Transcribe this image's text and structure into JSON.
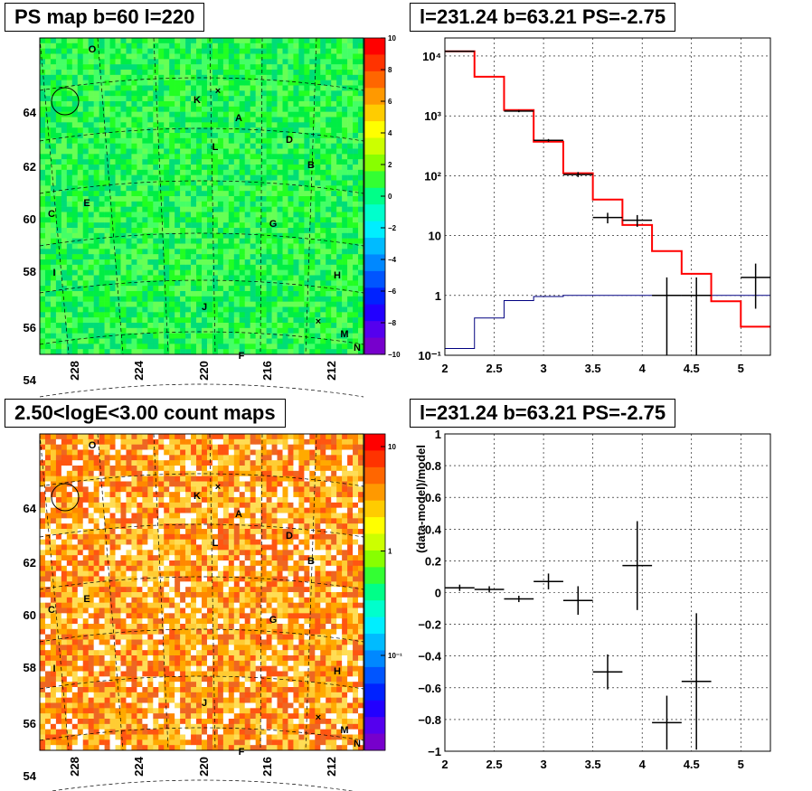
{
  "panels": {
    "ps_map_title": "PS map b=60 l=220",
    "spectrum_title": "l=231.24 b=63.21 PS=-2.75",
    "count_map_title": "2.50<logE<3.00 count maps",
    "residual_title": "l=231.24 b=63.21 PS=-2.75"
  },
  "sky_maps": {
    "l_ticks": [
      "228",
      "224",
      "220",
      "216",
      "212"
    ],
    "b_ticks": [
      "64",
      "62",
      "60",
      "58",
      "56",
      "54"
    ],
    "source_labels": [
      "O",
      "K",
      "A",
      "L",
      "D",
      "B",
      "C",
      "E",
      "G",
      "I",
      "H",
      "J",
      "M",
      "N",
      "F"
    ],
    "ps_colorbar_ticks": [
      "10",
      "8",
      "6",
      "4",
      "2",
      "0",
      "−2",
      "−4",
      "−6",
      "−8",
      "−10"
    ],
    "count_colorbar_ticks": [
      "10",
      "1",
      "10⁻¹"
    ],
    "ps_map_colors": [
      "#00ee44",
      "#22ff22",
      "#44ff66",
      "#00dd77",
      "#66ff55"
    ],
    "count_map_colors": [
      "#ff8800",
      "#ffaa00",
      "#ffcc33",
      "#ee6622",
      "#ffdd55",
      "#ff5511",
      "#ffffff"
    ]
  },
  "chart_data": [
    {
      "type": "line",
      "panel": "spectrum",
      "x_ticks": [
        "2",
        "2.5",
        "3",
        "3.5",
        "4",
        "4.5",
        "5"
      ],
      "y_ticks": [
        "10⁻¹",
        "1",
        "10",
        "10²",
        "10³",
        "10⁴"
      ],
      "xlim": [
        2.0,
        5.3
      ],
      "ylim": [
        0.1,
        20000
      ],
      "log_y": true,
      "grid": true,
      "model_total_color": "#ff0000",
      "model_background_color": "#000080",
      "model_total_step": {
        "edges": [
          2.0,
          2.3,
          2.6,
          2.9,
          3.2,
          3.5,
          3.8,
          4.1,
          4.4,
          4.7,
          5.0,
          5.3
        ],
        "values": [
          12000,
          4500,
          1250,
          370,
          110,
          40,
          15,
          5.5,
          2.3,
          0.8,
          0.3
        ]
      },
      "model_background_step": {
        "edges": [
          2.0,
          2.3,
          2.6,
          2.9,
          3.2,
          3.5,
          3.8,
          4.1,
          4.4,
          4.7,
          5.0,
          5.3
        ],
        "values": [
          0.13,
          0.42,
          0.82,
          0.96,
          1.0,
          1.0,
          1.0,
          1.0,
          1.0,
          1.0,
          1.0
        ]
      },
      "data_points": [
        {
          "x": 2.15,
          "xerr": 0.15,
          "y": 12000,
          "ylo": 11800,
          "yhi": 12200
        },
        {
          "x": 2.75,
          "xerr": 0.15,
          "y": 1200,
          "ylo": 1150,
          "yhi": 1250
        },
        {
          "x": 3.05,
          "xerr": 0.15,
          "y": 390,
          "ylo": 370,
          "yhi": 410
        },
        {
          "x": 3.35,
          "xerr": 0.15,
          "y": 105,
          "ylo": 95,
          "yhi": 115
        },
        {
          "x": 3.65,
          "xerr": 0.15,
          "y": 20,
          "ylo": 16,
          "yhi": 24
        },
        {
          "x": 3.95,
          "xerr": 0.15,
          "y": 18,
          "ylo": 14,
          "yhi": 22
        },
        {
          "x": 4.25,
          "xerr": 0.15,
          "y": 1.0,
          "ylo": 0.1,
          "yhi": 2.0
        },
        {
          "x": 4.55,
          "xerr": 0.15,
          "y": 1.0,
          "ylo": 0.1,
          "yhi": 2.0
        },
        {
          "x": 5.15,
          "xerr": 0.15,
          "y": 2.0,
          "ylo": 0.6,
          "yhi": 3.4
        }
      ]
    },
    {
      "type": "scatter",
      "panel": "residual",
      "ylabel": "(data-model)/model",
      "x_ticks": [
        "2",
        "2.5",
        "3",
        "3.5",
        "4",
        "4.5",
        "5"
      ],
      "y_ticks": [
        "1",
        "0.8",
        "0.6",
        "0.4",
        "0.2",
        "0",
        "−0.2",
        "−0.4",
        "−0.6",
        "−0.8",
        "−1"
      ],
      "xlim": [
        2.0,
        5.3
      ],
      "ylim": [
        -1,
        1
      ],
      "grid": true,
      "data_points": [
        {
          "x": 2.15,
          "xerr": 0.15,
          "y": 0.03,
          "yerr": 0.02
        },
        {
          "x": 2.45,
          "xerr": 0.15,
          "y": 0.02,
          "yerr": 0.02
        },
        {
          "x": 2.75,
          "xerr": 0.15,
          "y": -0.04,
          "yerr": 0.02
        },
        {
          "x": 3.05,
          "xerr": 0.15,
          "y": 0.07,
          "yerr": 0.05
        },
        {
          "x": 3.35,
          "xerr": 0.15,
          "y": -0.05,
          "yerr": 0.09
        },
        {
          "x": 3.65,
          "xerr": 0.15,
          "y": -0.5,
          "yerr": 0.11
        },
        {
          "x": 3.95,
          "xerr": 0.15,
          "y": 0.17,
          "yerr": 0.28
        },
        {
          "x": 4.25,
          "xerr": 0.15,
          "y": -0.82,
          "yerr": 0.17
        },
        {
          "x": 4.55,
          "xerr": 0.15,
          "y": -0.56,
          "yerr": 0.43
        }
      ]
    }
  ]
}
